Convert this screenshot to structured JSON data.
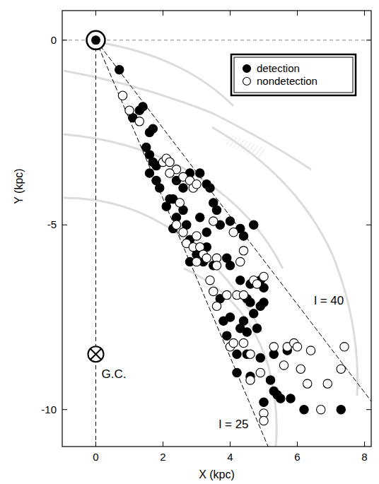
{
  "chart_data": {
    "type": "scatter",
    "x_label": "X (kpc)",
    "y_label": "Y (kpc)",
    "xlim": [
      -1,
      8.2
    ],
    "ylim": [
      -11,
      0.8
    ],
    "xticks": [
      0,
      2,
      4,
      6,
      8
    ],
    "yticks": [
      0,
      -5,
      -10
    ],
    "legend": "upper right",
    "grid": false,
    "ref_lines": [
      {
        "axis": "x",
        "value": 0
      },
      {
        "axis": "y",
        "value": 0
      }
    ],
    "sun": {
      "x": 0,
      "y": 0
    },
    "gc": {
      "label": "G.C.",
      "x": 0,
      "y": -8.5
    },
    "boundary_lines": [
      {
        "label": "l = 25",
        "longitude": 25
      },
      {
        "label": "l = 40",
        "longitude": 40
      }
    ],
    "series": [
      {
        "name": "detection",
        "marker": "filled",
        "color": "#000000",
        "x": [
          0.7,
          1.1,
          1.3,
          1.4,
          1.6,
          1.7,
          1.5,
          1.6,
          1.7,
          1.6,
          1.8,
          1.8,
          1.9,
          2.2,
          2.1,
          2.3,
          2.4,
          2.6,
          2.8,
          3.1,
          3.3,
          3.4,
          2.6,
          2.4,
          2.7,
          2.3,
          2.8,
          3.1,
          3.3,
          3.5,
          3.6,
          3.7,
          3.3,
          3.0,
          2.8,
          3.2,
          3.5,
          3.9,
          4.3,
          4.7,
          4.0,
          4.9,
          4.6,
          4.3,
          3.7,
          3.8,
          4.0,
          3.9,
          4.2,
          4.3,
          4.4,
          4.6,
          4.7,
          4.5,
          4.5,
          4.8,
          5.0,
          4.9,
          5.0,
          4.5,
          4.2,
          4.6,
          4.9,
          5.3,
          5.7,
          5.2,
          5.4,
          5.5,
          5.0,
          5.3,
          5.8,
          6.2,
          7.3,
          4.0,
          4.4
        ],
        "values": [
          -0.8,
          -2.1,
          -1.9,
          -1.8,
          -2.5,
          -2.4,
          -2.9,
          -3.1,
          -3.3,
          -3.6,
          -3.4,
          -3.8,
          -4.0,
          -4.3,
          -4.5,
          -4.3,
          -3.8,
          -4.0,
          -3.6,
          -3.6,
          -3.9,
          -4.0,
          -4.6,
          -4.8,
          -5.0,
          -5.1,
          -5.4,
          -4.8,
          -5.2,
          -4.4,
          -4.6,
          -5.0,
          -5.6,
          -5.8,
          -6.0,
          -6.0,
          -6.1,
          -5.9,
          -5.1,
          -5.0,
          -6.1,
          -6.5,
          -6.6,
          -6.5,
          -7.0,
          -7.6,
          -7.5,
          -8.0,
          -8.5,
          -7.8,
          -7.6,
          -7.1,
          -7.4,
          -7.0,
          -7.9,
          -7.8,
          -7.1,
          -7.2,
          -6.7,
          -8.5,
          -9.0,
          -9.1,
          -8.6,
          -8.5,
          -8.4,
          -9.2,
          -9.6,
          -9.7,
          -9.8,
          -9.5,
          -9.7,
          -10.0,
          -10.0,
          -4.9,
          -5.3
        ]
      },
      {
        "name": "nondetection",
        "marker": "open",
        "color": "#000000",
        "x": [
          0.8,
          1.0,
          1.3,
          2.0,
          2.1,
          2.2,
          2.4,
          2.6,
          2.8,
          2.9,
          3.0,
          2.2,
          2.5,
          2.4,
          2.6,
          2.7,
          2.9,
          3.0,
          3.1,
          3.2,
          3.0,
          3.3,
          3.6,
          3.5,
          3.4,
          3.5,
          3.6,
          3.9,
          4.2,
          4.4,
          4.7,
          4.8,
          5.0,
          4.4,
          4.0,
          4.1,
          4.4,
          4.6,
          4.9,
          4.6,
          5.0,
          5.0,
          5.3,
          5.6,
          5.7,
          5.9,
          6.0,
          6.1,
          6.3,
          6.4,
          6.7,
          6.9,
          7.3,
          7.4,
          3.6,
          4.1,
          4.3
        ],
        "values": [
          -1.5,
          -1.9,
          -2.2,
          -3.3,
          -3.2,
          -3.3,
          -3.5,
          -3.7,
          -3.8,
          -4.0,
          -3.9,
          -3.6,
          -4.4,
          -5.0,
          -5.2,
          -5.5,
          -5.6,
          -5.3,
          -5.6,
          -5.8,
          -6.0,
          -5.9,
          -5.9,
          -4.9,
          -6.5,
          -6.8,
          -7.2,
          -6.9,
          -6.9,
          -6.9,
          -6.5,
          -6.6,
          -6.4,
          -5.7,
          -8.3,
          -8.2,
          -8.2,
          -8.5,
          -9.0,
          -9.2,
          -10.1,
          -10.3,
          -8.3,
          -8.8,
          -8.3,
          -8.2,
          -8.3,
          -8.9,
          -9.3,
          -8.4,
          -10.0,
          -9.3,
          -8.9,
          -8.3,
          -6.1,
          -5.2,
          -6.0
        ]
      }
    ]
  }
}
